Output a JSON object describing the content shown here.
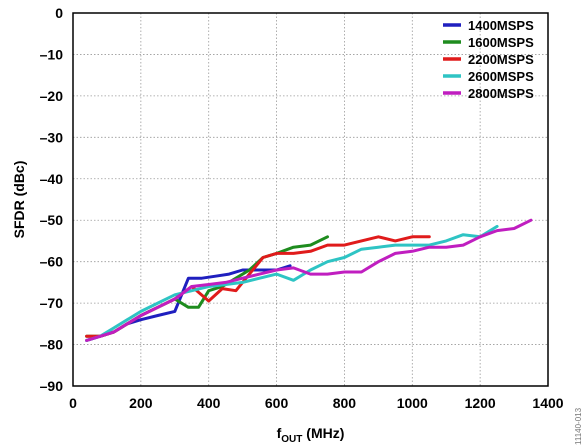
{
  "figure_id": "11140-013",
  "chart_data": {
    "type": "line",
    "xlabel": "f",
    "xlabel_sub": "OUT",
    "xlabel_unit": " (MHz)",
    "ylabel": "SFDR (dBc)",
    "xlim": [
      0,
      1400
    ],
    "ylim": [
      -90,
      0
    ],
    "xticks": [
      0,
      200,
      400,
      600,
      800,
      1000,
      1200,
      1400
    ],
    "yticks": [
      0,
      -10,
      -20,
      -30,
      -40,
      -50,
      -60,
      -70,
      -80,
      -90
    ],
    "xtick_labels": [
      "0",
      "200",
      "400",
      "600",
      "800",
      "1000",
      "1200",
      "1400"
    ],
    "ytick_labels": [
      "0",
      "–10",
      "–20",
      "–30",
      "–40",
      "–50",
      "–60",
      "–70",
      "–80",
      "–90"
    ],
    "grid": true,
    "legend_position": "top-right",
    "series": [
      {
        "name": "1400MSPS",
        "color": "#1f1fbf",
        "x": [
          40,
          80,
          120,
          160,
          200,
          250,
          300,
          340,
          380,
          420,
          460,
          500,
          550,
          600,
          640
        ],
        "y": [
          -79,
          -78,
          -77,
          -75,
          -74,
          -73,
          -72,
          -64,
          -64,
          -63.5,
          -63,
          -62,
          -62,
          -62,
          -61
        ]
      },
      {
        "name": "1600MSPS",
        "color": "#1e8c1e",
        "x": [
          40,
          80,
          120,
          160,
          200,
          250,
          300,
          340,
          370,
          400,
          440,
          480,
          520,
          560,
          600,
          650,
          700,
          750
        ],
        "y": [
          -78,
          -78,
          -77,
          -75,
          -73,
          -71,
          -69,
          -71,
          -71,
          -67,
          -66,
          -64,
          -62,
          -59,
          -58,
          -56.5,
          -56,
          -54
        ]
      },
      {
        "name": "2200MSPS",
        "color": "#e01b1b",
        "x": [
          40,
          80,
          120,
          160,
          200,
          250,
          300,
          350,
          400,
          440,
          480,
          520,
          560,
          600,
          650,
          700,
          750,
          800,
          850,
          900,
          950,
          1000,
          1050
        ],
        "y": [
          -78,
          -78,
          -77,
          -75,
          -73,
          -71,
          -69,
          -66,
          -69.5,
          -66.5,
          -67,
          -63,
          -59,
          -58,
          -58,
          -57.5,
          -56,
          -56,
          -55,
          -54,
          -55,
          -54,
          -54
        ]
      },
      {
        "name": "2600MSPS",
        "color": "#2ec4c4",
        "x": [
          40,
          80,
          120,
          160,
          200,
          250,
          300,
          350,
          400,
          450,
          500,
          550,
          600,
          650,
          700,
          750,
          800,
          850,
          900,
          950,
          1000,
          1050,
          1100,
          1150,
          1200,
          1250
        ],
        "y": [
          -79,
          -78,
          -76,
          -74,
          -72,
          -70,
          -68,
          -67,
          -66,
          -65.5,
          -65,
          -64,
          -63,
          -64.5,
          -62,
          -60,
          -59,
          -57,
          -56.5,
          -56,
          -56,
          -56,
          -55,
          -53.5,
          -54,
          -51.5
        ]
      },
      {
        "name": "2800MSPS",
        "color": "#c01ec0",
        "x": [
          40,
          80,
          120,
          160,
          200,
          250,
          300,
          350,
          400,
          450,
          500,
          550,
          600,
          650,
          700,
          750,
          800,
          850,
          900,
          950,
          1000,
          1050,
          1100,
          1150,
          1200,
          1250,
          1300,
          1350
        ],
        "y": [
          -79,
          -78,
          -77,
          -75,
          -73,
          -71,
          -69,
          -66,
          -65.5,
          -65,
          -64,
          -63,
          -62,
          -61.5,
          -63,
          -63,
          -62.5,
          -62.5,
          -60,
          -58,
          -57.5,
          -56.5,
          -56.5,
          -56,
          -54,
          -52.5,
          -52,
          -50
        ]
      }
    ]
  }
}
